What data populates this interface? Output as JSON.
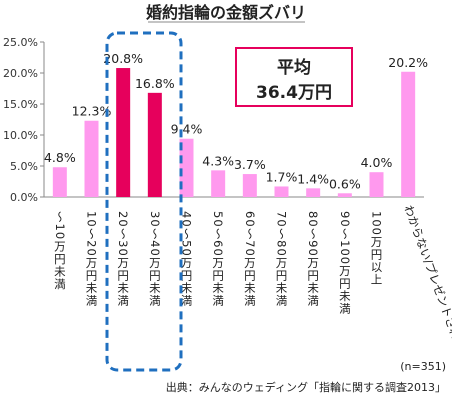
{
  "chart_data": {
    "type": "bar",
    "title": "婚約指輪の金額ズバリ",
    "xlabel": "",
    "ylabel": "",
    "ylim": [
      0,
      25
    ],
    "yticks": [
      "0.0%",
      "5.0%",
      "10.0%",
      "15.0%",
      "20.0%",
      "25.0%"
    ],
    "grid": false,
    "categories": [
      "～10万円未満",
      "10～20万円未満",
      "20～30万円未満",
      "30～40万円未満",
      "40～50万円未満",
      "50～60万円未満",
      "60～70万円未満",
      "70～80万円未満",
      "80～90万円未満",
      "90～100万円未満",
      "100万円以上",
      "わからない/プレゼントされた"
    ],
    "values": [
      4.8,
      12.3,
      20.8,
      16.8,
      9.4,
      4.3,
      3.7,
      1.7,
      1.4,
      0.6,
      4.0,
      20.2
    ],
    "value_labels": [
      "4.8%",
      "12.3%",
      "20.8%",
      "16.8%",
      "9.4%",
      "4.3%",
      "3.7%",
      "1.7%",
      "1.4%",
      "0.6%",
      "4.0%",
      "20.2%"
    ],
    "highlight_indices": [
      2,
      3
    ],
    "colors": {
      "bar": "#ff99ee",
      "bar_highlight": "#e6005c",
      "box": "#1f6fbf",
      "avg_border": "#e6005c"
    },
    "average": {
      "line1": "平均",
      "line2": "36.4万円"
    },
    "sample_note": "(n=351)",
    "source": "出典：みんなのウェディング「指輪に関する調査2013」"
  }
}
